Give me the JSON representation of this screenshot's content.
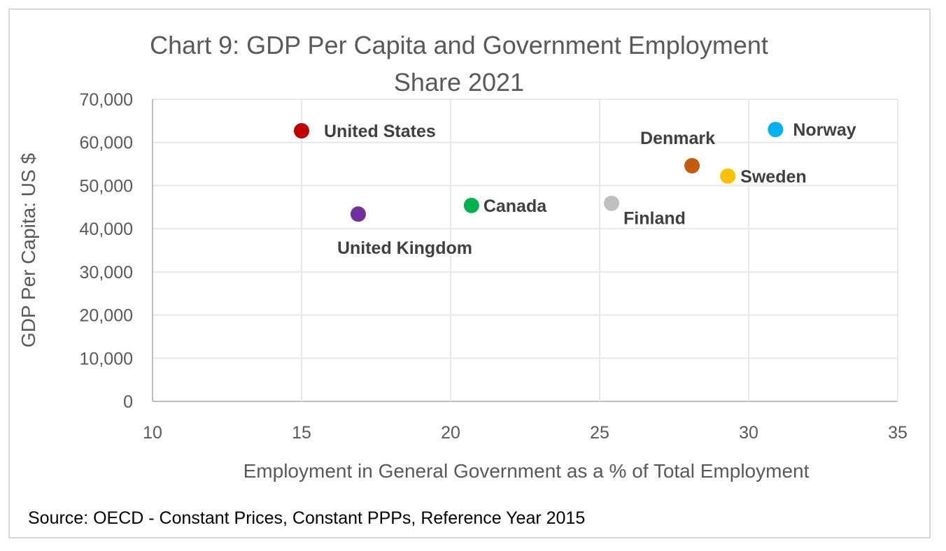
{
  "chart_data": {
    "type": "scatter",
    "title": "Chart 9: GDP Per Capita and Government Employment Share 2021",
    "title_lines": [
      "Chart 9: GDP Per Capita and Government Employment",
      "Share 2021"
    ],
    "xlabel": "Employment in General Government as a % of Total Employment",
    "ylabel": "GDP Per Capita: US $",
    "xlim": [
      10,
      35
    ],
    "ylim": [
      0,
      70000
    ],
    "xticks": [
      "10",
      "15",
      "20",
      "25",
      "30",
      "35"
    ],
    "yticks": [
      "0",
      "10,000",
      "20,000",
      "30,000",
      "40,000",
      "50,000",
      "60,000",
      "70,000"
    ],
    "grid": true,
    "legend": "none",
    "points": [
      {
        "label": "United States",
        "x": 15.0,
        "y": 62700,
        "color": "#C00000",
        "label_pos": "right"
      },
      {
        "label": "United Kingdom",
        "x": 16.9,
        "y": 43400,
        "color": "#7030A0",
        "label_pos": "below"
      },
      {
        "label": "Canada",
        "x": 20.7,
        "y": 45400,
        "color": "#00B050",
        "label_pos": "right"
      },
      {
        "label": "Finland",
        "x": 25.4,
        "y": 45900,
        "color": "#BFBFBF",
        "label_pos": "below-right"
      },
      {
        "label": "Denmark",
        "x": 28.1,
        "y": 54600,
        "color": "#C55A11",
        "label_pos": "above-left"
      },
      {
        "label": "Sweden",
        "x": 29.3,
        "y": 52200,
        "color": "#FFC000",
        "label_pos": "right"
      },
      {
        "label": "Norway",
        "x": 30.9,
        "y": 63000,
        "color": "#00B0F0",
        "label_pos": "right"
      }
    ]
  },
  "source": "Source: OECD - Constant Prices, Constant PPPs, Reference Year 2015"
}
